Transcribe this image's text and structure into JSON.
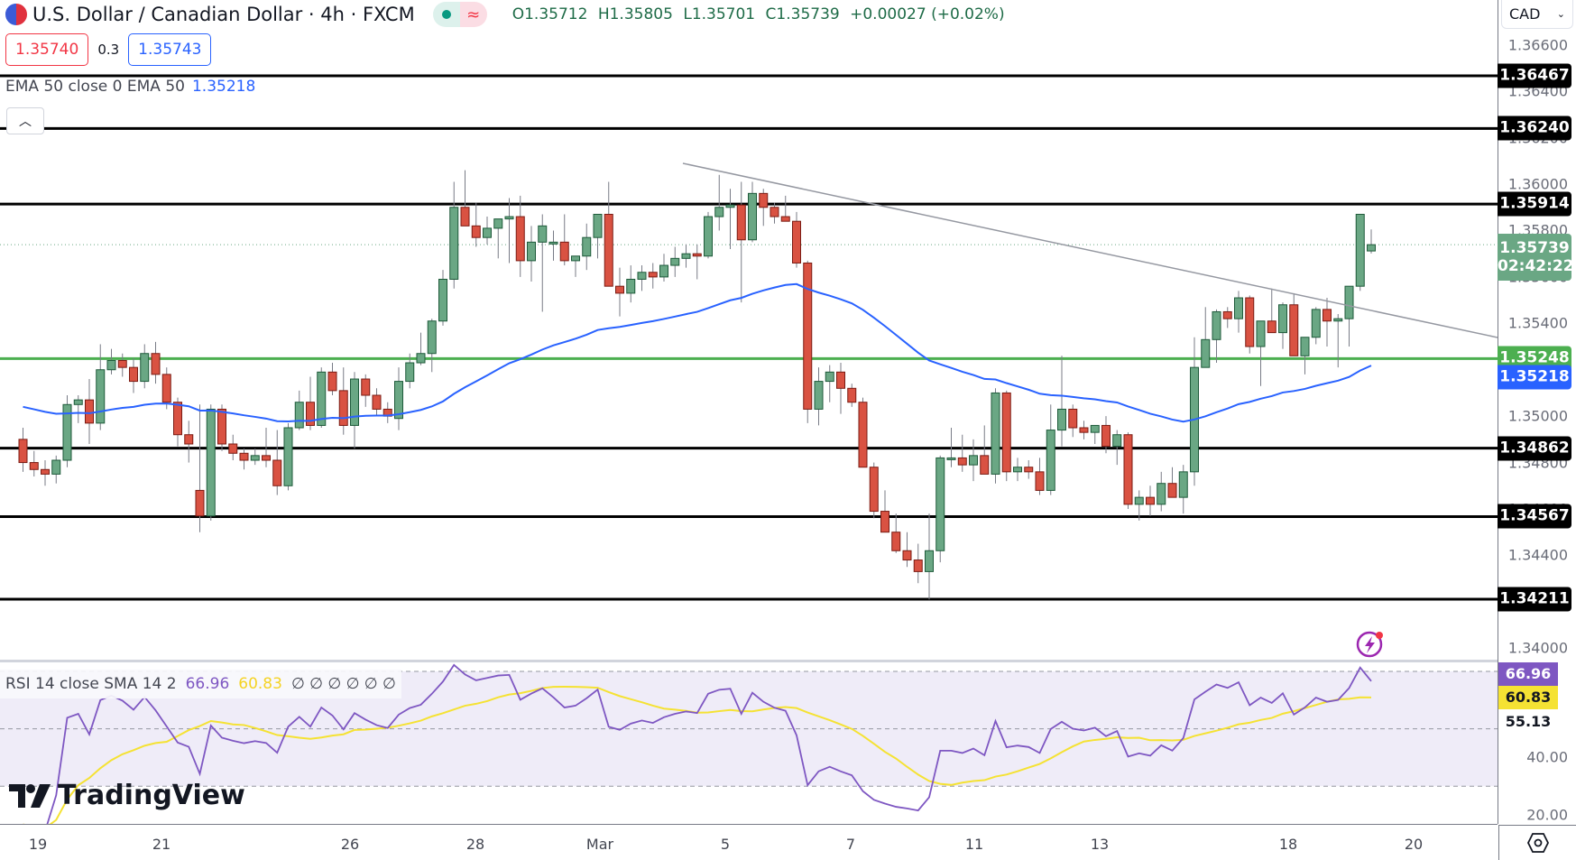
{
  "header": {
    "symbol_title": "U.S. Dollar / Canadian Dollar · 4h · FXCM",
    "market_status_icons": [
      "market-open-dot-icon",
      "delayed-data-icon"
    ],
    "ohlc": {
      "open_label": "O",
      "open": "1.35712",
      "high_label": "H",
      "high": "1.35805",
      "low_label": "L",
      "low": "1.35701",
      "close_label": "C",
      "close": "1.35739",
      "change": "+0.00027 (+0.02%)"
    },
    "sell_price": "1.35740",
    "spread": "0.3",
    "buy_price": "1.35743"
  },
  "indicators": {
    "ema_legend": "EMA 50 close 0 EMA 50",
    "ema_value": "1.35218",
    "collapse_icon": "chevron-up-icon",
    "rsi_legend": "RSI 14 close SMA 14 2",
    "rsi_value": "66.96",
    "rsi_sma_value": "60.83",
    "rsi_empty_values": "∅ ∅ ∅ ∅ ∅ ∅"
  },
  "price_axis": {
    "currency": "CAD",
    "ticks": [
      "1.36600",
      "1.36400",
      "1.36200",
      "1.36000",
      "1.35800",
      "1.35600",
      "1.35400",
      "1.35000",
      "1.34800",
      "1.34600",
      "1.34400",
      "1.34000"
    ],
    "current_price": "1.35739",
    "countdown": "02:42:22",
    "levels": [
      {
        "value": "1.36467",
        "color": "#000000"
      },
      {
        "value": "1.36240",
        "color": "#000000"
      },
      {
        "value": "1.35914",
        "color": "#000000"
      },
      {
        "value": "1.35248",
        "color": "#4caf50"
      },
      {
        "value": "1.34862",
        "color": "#000000"
      },
      {
        "value": "1.34567",
        "color": "#000000"
      },
      {
        "value": "1.34211",
        "color": "#000000"
      }
    ],
    "ema_label": "1.35218"
  },
  "rsi_axis": {
    "ticks": [
      "40.00",
      "20.00"
    ],
    "rsi_label": "66.96",
    "sma_label": "60.83",
    "level_label": "55.13"
  },
  "time_axis": {
    "labels": [
      "19",
      "21",
      "26",
      "28",
      "Mar",
      "5",
      "7",
      "11",
      "13",
      "18",
      "20"
    ],
    "settings_icon": "settings-hex-icon"
  },
  "branding": {
    "logo_text": "TradingView"
  },
  "colors": {
    "up": "#6aa784",
    "up_border": "#1e5a3a",
    "down": "#d95242",
    "down_border": "#7a1c14",
    "ema": "#2962ff",
    "rsi": "#7e57c2",
    "rsi_sma": "#f5e233",
    "support": "#4caf50",
    "level": "#000000",
    "trendline": "#9598a1"
  },
  "chart_data": [
    {
      "type": "candlestick",
      "title": "U.S. Dollar / Canadian Dollar · 4h · FXCM",
      "ylabel": "CAD",
      "ylim": [
        1.3395,
        1.3668
      ],
      "x_ticks": [
        "19",
        "21",
        "26",
        "28",
        "Mar",
        "5",
        "7",
        "11",
        "13",
        "18",
        "20"
      ],
      "last_ohlc": {
        "open": 1.35712,
        "high": 1.35805,
        "low": 1.35701,
        "close": 1.35739
      },
      "horizontal_levels": [
        1.36467,
        1.3624,
        1.35914,
        1.35248,
        1.34862,
        1.34567,
        1.34211
      ],
      "ema50_last": 1.35218,
      "trendline": {
        "from": [
          0.43,
          1.3618
        ],
        "to": [
          1.0,
          1.3531
        ]
      },
      "candles_ohlc": [
        [
          1.349,
          1.3495,
          1.3476,
          1.348
        ],
        [
          1.348,
          1.3485,
          1.3474,
          1.3477
        ],
        [
          1.3477,
          1.3481,
          1.347,
          1.3475
        ],
        [
          1.3475,
          1.3483,
          1.3471,
          1.3481
        ],
        [
          1.3481,
          1.3509,
          1.3478,
          1.3505
        ],
        [
          1.3505,
          1.3509,
          1.3497,
          1.3507
        ],
        [
          1.3507,
          1.3516,
          1.3488,
          1.3497
        ],
        [
          1.3497,
          1.3531,
          1.3494,
          1.352
        ],
        [
          1.352,
          1.3529,
          1.3518,
          1.3524
        ],
        [
          1.3524,
          1.3527,
          1.3517,
          1.3521
        ],
        [
          1.3521,
          1.3525,
          1.351,
          1.3515
        ],
        [
          1.3515,
          1.3531,
          1.3512,
          1.3527
        ],
        [
          1.3527,
          1.3532,
          1.3514,
          1.3518
        ],
        [
          1.3518,
          1.3521,
          1.3503,
          1.3506
        ],
        [
          1.3506,
          1.3508,
          1.3487,
          1.3492
        ],
        [
          1.3492,
          1.3498,
          1.348,
          1.3488
        ],
        [
          1.3468,
          1.3505,
          1.345,
          1.3457
        ],
        [
          1.3457,
          1.3505,
          1.3455,
          1.3503
        ],
        [
          1.3503,
          1.3505,
          1.3485,
          1.3488
        ],
        [
          1.3488,
          1.3492,
          1.3481,
          1.3484
        ],
        [
          1.3484,
          1.3486,
          1.3477,
          1.3481
        ],
        [
          1.3481,
          1.3486,
          1.3479,
          1.3483
        ],
        [
          1.3483,
          1.3495,
          1.3478,
          1.3481
        ],
        [
          1.3481,
          1.3494,
          1.3466,
          1.347
        ],
        [
          1.347,
          1.3497,
          1.3468,
          1.3495
        ],
        [
          1.3495,
          1.3511,
          1.3494,
          1.3506
        ],
        [
          1.3506,
          1.3517,
          1.3494,
          1.3496
        ],
        [
          1.3496,
          1.3521,
          1.3495,
          1.3519
        ],
        [
          1.3519,
          1.3523,
          1.3509,
          1.3511
        ],
        [
          1.3511,
          1.3521,
          1.3492,
          1.3496
        ],
        [
          1.3496,
          1.3519,
          1.3486,
          1.3516
        ],
        [
          1.3516,
          1.3518,
          1.3504,
          1.3509
        ],
        [
          1.3509,
          1.3512,
          1.35,
          1.3503
        ],
        [
          1.3503,
          1.3506,
          1.3497,
          1.35
        ],
        [
          1.3499,
          1.3521,
          1.3494,
          1.3515
        ],
        [
          1.3515,
          1.3527,
          1.3512,
          1.3523
        ],
        [
          1.3523,
          1.3536,
          1.3522,
          1.3527
        ],
        [
          1.3527,
          1.3542,
          1.3519,
          1.3541
        ],
        [
          1.3541,
          1.3563,
          1.3539,
          1.3559
        ],
        [
          1.3559,
          1.3601,
          1.3555,
          1.359
        ],
        [
          1.359,
          1.3606,
          1.3585,
          1.3582
        ],
        [
          1.3582,
          1.3592,
          1.3573,
          1.3577
        ],
        [
          1.3577,
          1.3586,
          1.3574,
          1.3581
        ],
        [
          1.3581,
          1.3585,
          1.3568,
          1.3585
        ],
        [
          1.3585,
          1.3594,
          1.3566,
          1.3586
        ],
        [
          1.3586,
          1.3595,
          1.356,
          1.3567
        ],
        [
          1.3567,
          1.3582,
          1.3558,
          1.3575
        ],
        [
          1.3575,
          1.3587,
          1.3545,
          1.3582
        ],
        [
          1.3575,
          1.358,
          1.3567,
          1.3575
        ],
        [
          1.3575,
          1.3587,
          1.3565,
          1.3567
        ],
        [
          1.3567,
          1.3569,
          1.356,
          1.3569
        ],
        [
          1.3569,
          1.3583,
          1.3563,
          1.3577
        ],
        [
          1.3577,
          1.3581,
          1.3568,
          1.3587
        ],
        [
          1.3587,
          1.3601,
          1.3568,
          1.3556
        ],
        [
          1.3556,
          1.3564,
          1.3543,
          1.3553
        ],
        [
          1.3553,
          1.3565,
          1.3549,
          1.3559
        ],
        [
          1.3559,
          1.3565,
          1.3554,
          1.3562
        ],
        [
          1.3562,
          1.3566,
          1.3555,
          1.356
        ],
        [
          1.356,
          1.357,
          1.3558,
          1.3565
        ],
        [
          1.3565,
          1.3573,
          1.356,
          1.3568
        ],
        [
          1.3568,
          1.3574,
          1.3564,
          1.357
        ],
        [
          1.357,
          1.3574,
          1.3559,
          1.3569
        ],
        [
          1.3569,
          1.3588,
          1.3568,
          1.3586
        ],
        [
          1.3586,
          1.3604,
          1.358,
          1.359
        ],
        [
          1.359,
          1.3598,
          1.3572,
          1.3591
        ],
        [
          1.3591,
          1.3601,
          1.3549,
          1.3576
        ],
        [
          1.3576,
          1.3601,
          1.3575,
          1.3596
        ],
        [
          1.3596,
          1.3598,
          1.3582,
          1.359
        ],
        [
          1.359,
          1.3592,
          1.3583,
          1.3586
        ],
        [
          1.3586,
          1.3595,
          1.3584,
          1.3584
        ],
        [
          1.3584,
          1.3588,
          1.3564,
          1.3566
        ],
        [
          1.3566,
          1.3567,
          1.3497,
          1.3503
        ],
        [
          1.3503,
          1.3521,
          1.3496,
          1.3515
        ],
        [
          1.3515,
          1.3522,
          1.3506,
          1.3519
        ],
        [
          1.3519,
          1.3523,
          1.3501,
          1.3512
        ],
        [
          1.3512,
          1.3514,
          1.3504,
          1.3506
        ],
        [
          1.3506,
          1.3508,
          1.3478,
          1.3478
        ],
        [
          1.3478,
          1.348,
          1.3456,
          1.3459
        ],
        [
          1.3459,
          1.3468,
          1.3454,
          1.345
        ],
        [
          1.345,
          1.3458,
          1.3441,
          1.3442
        ],
        [
          1.3442,
          1.345,
          1.3435,
          1.3438
        ],
        [
          1.3438,
          1.3445,
          1.3428,
          1.3433
        ],
        [
          1.3433,
          1.3458,
          1.3421,
          1.3442
        ],
        [
          1.3442,
          1.3483,
          1.3437,
          1.3482
        ],
        [
          1.3482,
          1.3495,
          1.3478,
          1.3482
        ],
        [
          1.3482,
          1.3492,
          1.3476,
          1.3479
        ],
        [
          1.3479,
          1.349,
          1.3472,
          1.3483
        ],
        [
          1.3483,
          1.3496,
          1.3476,
          1.3475
        ],
        [
          1.3475,
          1.3512,
          1.3471,
          1.351
        ],
        [
          1.351,
          1.3511,
          1.3472,
          1.3476
        ],
        [
          1.3476,
          1.3482,
          1.3472,
          1.3478
        ],
        [
          1.3478,
          1.3481,
          1.3473,
          1.3476
        ],
        [
          1.3476,
          1.3482,
          1.3466,
          1.3468
        ],
        [
          1.3468,
          1.3505,
          1.3466,
          1.3494
        ],
        [
          1.3494,
          1.3526,
          1.3487,
          1.3503
        ],
        [
          1.3503,
          1.3505,
          1.3491,
          1.3495
        ],
        [
          1.3495,
          1.3498,
          1.349,
          1.3493
        ],
        [
          1.3493,
          1.3496,
          1.3488,
          1.3496
        ],
        [
          1.3496,
          1.35,
          1.3484,
          1.3487
        ],
        [
          1.3487,
          1.3494,
          1.3479,
          1.3492
        ],
        [
          1.3492,
          1.3493,
          1.346,
          1.3462
        ],
        [
          1.3462,
          1.3468,
          1.3455,
          1.3465
        ],
        [
          1.3465,
          1.347,
          1.3457,
          1.3462
        ],
        [
          1.3462,
          1.3476,
          1.3459,
          1.3471
        ],
        [
          1.3471,
          1.3478,
          1.3465,
          1.3465
        ],
        [
          1.3465,
          1.3479,
          1.3458,
          1.3476
        ],
        [
          1.3476,
          1.3534,
          1.347,
          1.3521
        ],
        [
          1.3521,
          1.3547,
          1.3521,
          1.3533
        ],
        [
          1.3533,
          1.3546,
          1.3523,
          1.3545
        ],
        [
          1.3545,
          1.3547,
          1.3538,
          1.3542
        ],
        [
          1.3542,
          1.3554,
          1.3536,
          1.3551
        ],
        [
          1.3551,
          1.3552,
          1.3527,
          1.353
        ],
        [
          1.353,
          1.3541,
          1.3513,
          1.3541
        ],
        [
          1.3541,
          1.3555,
          1.354,
          1.3536
        ],
        [
          1.3536,
          1.3549,
          1.3529,
          1.3548
        ],
        [
          1.3548,
          1.3553,
          1.353,
          1.3526
        ],
        [
          1.3526,
          1.3533,
          1.3518,
          1.3534
        ],
        [
          1.3534,
          1.3547,
          1.3531,
          1.3546
        ],
        [
          1.3546,
          1.3551,
          1.353,
          1.3541
        ],
        [
          1.3541,
          1.3544,
          1.3521,
          1.3542
        ],
        [
          1.3542,
          1.3551,
          1.353,
          1.3556
        ],
        [
          1.3556,
          1.3587,
          1.3554,
          1.3587
        ],
        [
          1.35712,
          1.35805,
          1.35701,
          1.35739
        ]
      ]
    },
    {
      "type": "line",
      "title": "RSI 14 close SMA 14 2",
      "ylim": [
        20,
        80
      ],
      "bands": [
        70,
        50,
        30
      ],
      "series": [
        {
          "name": "RSI",
          "last": 66.96
        },
        {
          "name": "SMA 14",
          "last": 60.83
        }
      ],
      "y_ticks": [
        "40.00",
        "20.00"
      ],
      "highlight_level": 55.13
    }
  ]
}
